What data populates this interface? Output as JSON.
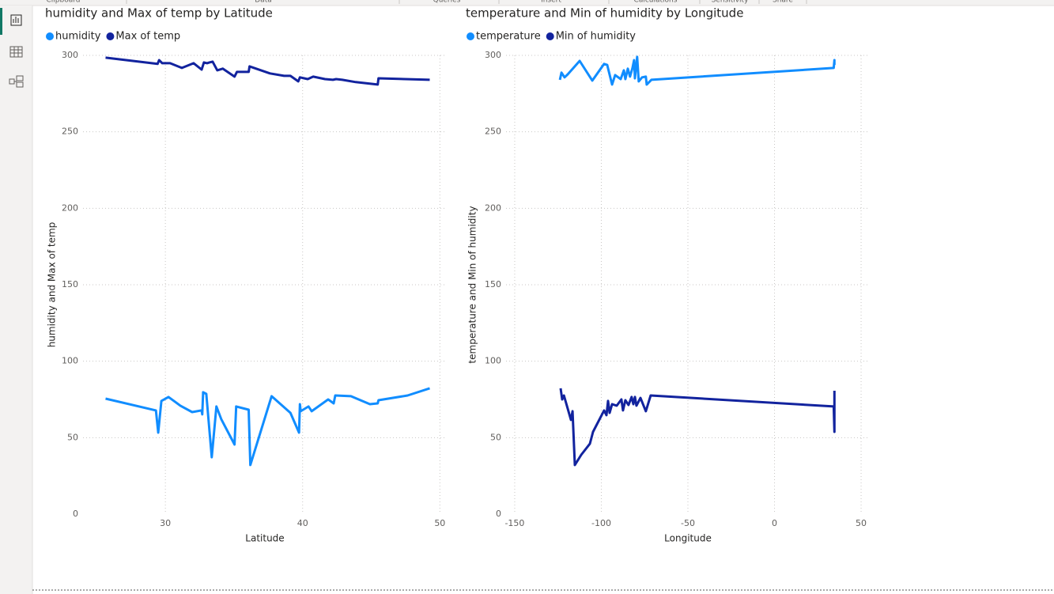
{
  "ribbon_groups": [
    "Clipboard",
    "Data",
    "Queries",
    "Insert",
    "Calculations",
    "Sensitivity",
    "Share"
  ],
  "chart_data": [
    {
      "type": "line",
      "title": "humidity and Max of temp by Latitude",
      "x_label": "Latitude",
      "y_label": "humidity and Max of temp",
      "xlim": [
        24,
        50.5
      ],
      "xticks": [
        30,
        40,
        50
      ],
      "ylim": [
        0,
        300
      ],
      "yticks": [
        0,
        50,
        100,
        150,
        200,
        250,
        300
      ],
      "grid": true,
      "series": [
        {
          "name": "humidity",
          "color": "#118dff",
          "x": [
            25.64,
            29.31,
            29.48,
            29.71,
            30.23,
            31.09,
            31.95,
            32.64,
            32.69,
            32.75,
            32.98,
            33.38,
            33.72,
            34.07,
            35.04,
            35.16,
            36.07,
            36.19,
            37.74,
            39.11,
            39.74,
            39.8,
            39.86,
            40.43,
            40.66,
            41.86,
            42.26,
            42.38,
            43.52,
            44.9,
            45.47,
            45.53,
            47.65,
            49.26
          ],
          "values": [
            75.5,
            67.8,
            53.3,
            74.0,
            76.6,
            70.9,
            66.7,
            67.8,
            65.2,
            79.7,
            78.6,
            37.2,
            70.4,
            62.1,
            45.5,
            70.4,
            68.3,
            32.1,
            77.1,
            66.2,
            53.3,
            71.9,
            67.3,
            70.4,
            67.3,
            75.0,
            72.4,
            77.6,
            77.1,
            71.9,
            72.4,
            74.5,
            77.6,
            82.3
          ]
        },
        {
          "name": "Max of temp",
          "color": "#12239e",
          "x": [
            25.64,
            29.43,
            29.54,
            29.77,
            30.34,
            31.2,
            32.06,
            32.64,
            32.81,
            33.04,
            33.21,
            33.44,
            33.78,
            34.18,
            35.04,
            35.21,
            36.07,
            36.13,
            37.62,
            38.65,
            39.11,
            39.68,
            39.8,
            40.37,
            40.77,
            41.63,
            42.21,
            42.44,
            42.89,
            43.87,
            45.47,
            45.53,
            49.26
          ],
          "values": [
            298.5,
            294.4,
            296.9,
            294.9,
            294.9,
            291.8,
            294.9,
            290.7,
            295.4,
            294.9,
            295.4,
            295.9,
            290.2,
            291.3,
            286.1,
            289.2,
            289.2,
            292.8,
            288.2,
            286.6,
            286.6,
            283.0,
            285.6,
            284.5,
            286.1,
            284.5,
            284.0,
            284.5,
            284.0,
            282.5,
            280.9,
            285.0,
            284.0
          ]
        }
      ]
    },
    {
      "type": "line",
      "title": "temperature and Min of humidity by Longitude",
      "x_label": "Longitude",
      "y_label": "temperature and Min of humidity",
      "xlim": [
        -155,
        55
      ],
      "xticks": [
        -150,
        -100,
        -50,
        0,
        50
      ],
      "ylim": [
        0,
        300
      ],
      "yticks": [
        0,
        50,
        100,
        150,
        200,
        250,
        300
      ],
      "grid": true,
      "series": [
        {
          "name": "temperature",
          "color": "#118dff",
          "x": [
            -123.9,
            -123.0,
            -121.2,
            -119.4,
            -112.5,
            -105.2,
            -98.4,
            -96.6,
            -93.8,
            -92.0,
            -88.8,
            -87.0,
            -86.1,
            -84.7,
            -83.4,
            -82.0,
            -81.1,
            -80.6,
            -79.3,
            -78.4,
            -76.5,
            -74.3,
            -73.8,
            -71.1,
            34.2,
            34.6,
            34.6
          ],
          "values": [
            284.0,
            288.7,
            285.6,
            287.6,
            296.4,
            283.5,
            294.4,
            293.8,
            280.9,
            287.1,
            284.5,
            290.2,
            284.5,
            291.3,
            286.1,
            291.8,
            296.9,
            285.0,
            299.0,
            283.0,
            285.6,
            286.1,
            280.9,
            284.0,
            291.8,
            296.9,
            293.8
          ]
        },
        {
          "name": "Min of humidity",
          "color": "#12239e",
          "x": [
            -123.5,
            -122.6,
            -121.6,
            -117.5,
            -116.6,
            -115.3,
            -111.6,
            -106.6,
            -104.8,
            -98.4,
            -97.0,
            -96.1,
            -95.2,
            -93.8,
            -91.1,
            -88.4,
            -87.5,
            -86.1,
            -84.3,
            -82.5,
            -81.5,
            -80.6,
            -79.7,
            -77.4,
            -74.3,
            -71.5,
            34.2,
            34.6,
            34.6
          ],
          "values": [
            82.3,
            75.0,
            77.6,
            61.6,
            67.3,
            32.1,
            38.8,
            46.0,
            53.8,
            67.8,
            64.7,
            74.0,
            66.2,
            71.9,
            70.9,
            75.0,
            67.8,
            74.5,
            71.4,
            76.6,
            71.9,
            76.6,
            70.9,
            76.0,
            67.3,
            77.6,
            70.4,
            53.8,
            80.7
          ]
        }
      ]
    }
  ]
}
